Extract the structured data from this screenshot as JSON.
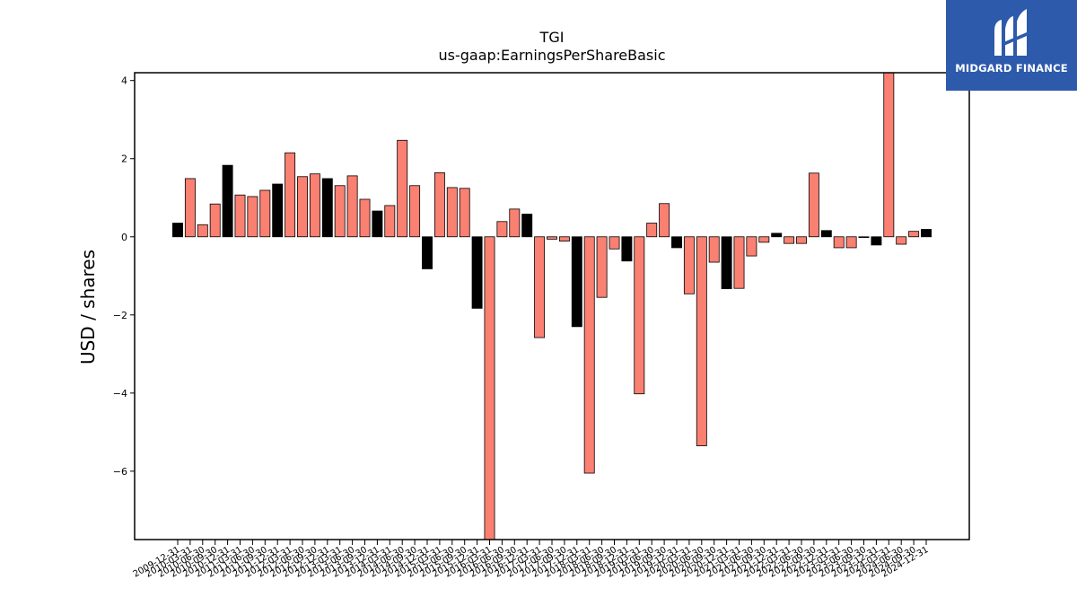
{
  "brand": {
    "name": "MIDGARD FINANCE",
    "logo_icon": "midgard-m-logo-icon",
    "background_color": "#2d5aab"
  },
  "chart_data": {
    "type": "bar",
    "title": "TGI",
    "subtitle": "us-gaap:EarningsPerShareBasic",
    "xlabel": "",
    "ylabel": "USD / shares",
    "ylim": [
      -7.75,
      4.2
    ],
    "yticks": [
      -6,
      -4,
      -2,
      0,
      2,
      4
    ],
    "ytick_labels": [
      "−6",
      "−4",
      "−2",
      "0",
      "2",
      "4"
    ],
    "grid": false,
    "colors": {
      "annual": "#000000",
      "quarterly": "#fa8072",
      "edge": "#000000"
    },
    "series": [
      {
        "x": [
          "2009-12-31",
          "2010-03-31",
          "2010-06-30",
          "2010-09-30",
          "2010-12-31",
          "2011-03-31",
          "2011-06-30",
          "2011-09-30",
          "2011-12-31",
          "2012-03-31",
          "2012-06-30",
          "2012-09-30",
          "2012-12-31",
          "2013-03-31",
          "2013-06-30",
          "2013-09-30",
          "2013-12-31",
          "2014-03-31",
          "2014-06-30",
          "2014-09-30",
          "2014-12-31",
          "2015-03-31",
          "2015-06-30",
          "2015-09-30",
          "2015-12-31",
          "2016-03-31",
          "2016-06-30",
          "2016-09-30",
          "2016-12-31",
          "2017-03-31",
          "2017-06-30",
          "2017-09-30",
          "2017-12-31",
          "2018-03-31",
          "2018-06-30",
          "2018-09-30",
          "2018-12-31",
          "2019-03-31",
          "2019-06-30",
          "2019-09-30",
          "2019-12-31",
          "2020-03-31",
          "2020-06-30",
          "2020-09-30",
          "2020-12-31",
          "2021-03-31",
          "2021-06-30",
          "2021-09-30",
          "2021-12-31",
          "2022-03-31",
          "2022-06-30",
          "2022-09-30",
          "2022-12-31",
          "2023-03-31",
          "2023-06-30",
          "2023-09-30",
          "2023-12-31",
          "2024-03-31",
          "2024-06-30",
          "2024-09-30",
          "2024-12-31"
        ],
        "values": [
          0.35,
          1.49,
          0.31,
          0.84,
          1.83,
          1.07,
          1.03,
          1.19,
          1.35,
          2.15,
          1.54,
          1.61,
          1.49,
          1.31,
          1.56,
          0.96,
          0.66,
          0.8,
          2.47,
          1.31,
          -0.82,
          1.64,
          1.26,
          1.24,
          -1.83,
          -7.75,
          0.39,
          0.71,
          0.58,
          -2.58,
          -0.06,
          -0.11,
          -2.3,
          -6.05,
          -1.55,
          -0.31,
          -0.62,
          -4.02,
          0.35,
          0.85,
          -0.28,
          -1.46,
          -5.35,
          -0.65,
          -1.33,
          -1.32,
          -0.49,
          -0.14,
          0.09,
          -0.17,
          -0.17,
          1.63,
          0.16,
          -0.28,
          -0.28,
          -0.02,
          -0.21,
          4.2,
          -0.19,
          0.14,
          0.19
        ],
        "kind": [
          "annual",
          "quarterly",
          "quarterly",
          "quarterly",
          "annual",
          "quarterly",
          "quarterly",
          "quarterly",
          "annual",
          "quarterly",
          "quarterly",
          "quarterly",
          "annual",
          "quarterly",
          "quarterly",
          "quarterly",
          "annual",
          "quarterly",
          "quarterly",
          "quarterly",
          "annual",
          "quarterly",
          "quarterly",
          "quarterly",
          "annual",
          "quarterly",
          "quarterly",
          "quarterly",
          "annual",
          "quarterly",
          "quarterly",
          "quarterly",
          "annual",
          "quarterly",
          "quarterly",
          "quarterly",
          "annual",
          "quarterly",
          "quarterly",
          "quarterly",
          "annual",
          "quarterly",
          "quarterly",
          "quarterly",
          "annual",
          "quarterly",
          "quarterly",
          "quarterly",
          "annual",
          "quarterly",
          "quarterly",
          "quarterly",
          "annual",
          "quarterly",
          "quarterly",
          "quarterly",
          "annual",
          "quarterly",
          "quarterly",
          "quarterly",
          "annual"
        ]
      }
    ]
  }
}
